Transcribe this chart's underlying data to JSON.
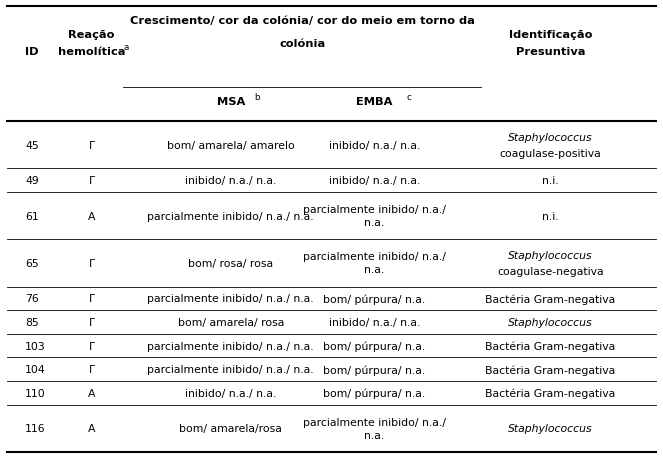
{
  "rows": [
    {
      "id": "45",
      "hemolitica": "Γ",
      "msa": "bom/ amarela/ amarelo",
      "emba": "inibido/ n.a./ n.a.",
      "id_line1": "Staphylococcus",
      "id_line2": "coagulase-positiva",
      "id1_italic": true,
      "id2_italic": false,
      "tall": true
    },
    {
      "id": "49",
      "hemolitica": "Γ",
      "msa": "inibido/ n.a./ n.a.",
      "emba": "inibido/ n.a./ n.a.",
      "id_line1": "n.i.",
      "id_line2": "",
      "id1_italic": false,
      "id2_italic": false,
      "tall": false
    },
    {
      "id": "61",
      "hemolitica": "A",
      "msa": "parcialmente inibido/ n.a./ n.a.",
      "emba_line1": "parcialmente inibido/ n.a./",
      "emba_line2": "n.a.",
      "id_line1": "n.i.",
      "id_line2": "",
      "id1_italic": false,
      "id2_italic": false,
      "tall": true
    },
    {
      "id": "65",
      "hemolitica": "Γ",
      "msa": "bom/ rosa/ rosa",
      "emba_line1": "parcialmente inibido/ n.a./",
      "emba_line2": "n.a.",
      "id_line1": "Staphylococcus",
      "id_line2": "coagulase-negativa",
      "id1_italic": true,
      "id2_italic": false,
      "tall": true
    },
    {
      "id": "76",
      "hemolitica": "Γ",
      "msa": "parcialmente inibido/ n.a./ n.a.",
      "emba": "bom/ púrpura/ n.a.",
      "id_line1": "Bactéria Gram-negativa",
      "id_line2": "",
      "id1_italic": false,
      "id2_italic": false,
      "tall": false
    },
    {
      "id": "85",
      "hemolitica": "Γ",
      "msa": "bom/ amarela/ rosa",
      "emba": "inibido/ n.a./ n.a.",
      "id_line1": "Staphylococcus",
      "id_line2": "",
      "id1_italic": true,
      "id2_italic": false,
      "tall": false
    },
    {
      "id": "103",
      "hemolitica": "Γ",
      "msa": "parcialmente inibido/ n.a./ n.a.",
      "emba": "bom/ púrpura/ n.a.",
      "id_line1": "Bactéria Gram-negativa",
      "id_line2": "",
      "id1_italic": false,
      "id2_italic": false,
      "tall": false
    },
    {
      "id": "104",
      "hemolitica": "Γ",
      "msa": "parcialmente inibido/ n.a./ n.a.",
      "emba": "bom/ púrpura/ n.a.",
      "id_line1": "Bactéria Gram-negativa",
      "id_line2": "",
      "id1_italic": false,
      "id2_italic": false,
      "tall": false
    },
    {
      "id": "110",
      "hemolitica": "A",
      "msa": "inibido/ n.a./ n.a.",
      "emba": "bom/ púrpura/ n.a.",
      "id_line1": "Bactéria Gram-negativa",
      "id_line2": "",
      "id1_italic": false,
      "id2_italic": false,
      "tall": false
    },
    {
      "id": "116",
      "hemolitica": "A",
      "msa": "bom/ amarela/rosa",
      "emba_line1": "parcialmente inibido/ n.a./",
      "emba_line2": "n.a.",
      "id_line1": "Staphylococcus",
      "id_line2": "",
      "id1_italic": true,
      "id2_italic": false,
      "tall": true
    }
  ],
  "bg_color": "#ffffff",
  "text_color": "#000000",
  "fontsize": 7.8,
  "header_fontsize": 8.2,
  "col_x": {
    "id": 0.038,
    "hemolitica": 0.138,
    "msa": 0.348,
    "emba": 0.565,
    "identificacao": 0.83
  },
  "thick_lw": 1.5,
  "thin_lw": 0.6
}
